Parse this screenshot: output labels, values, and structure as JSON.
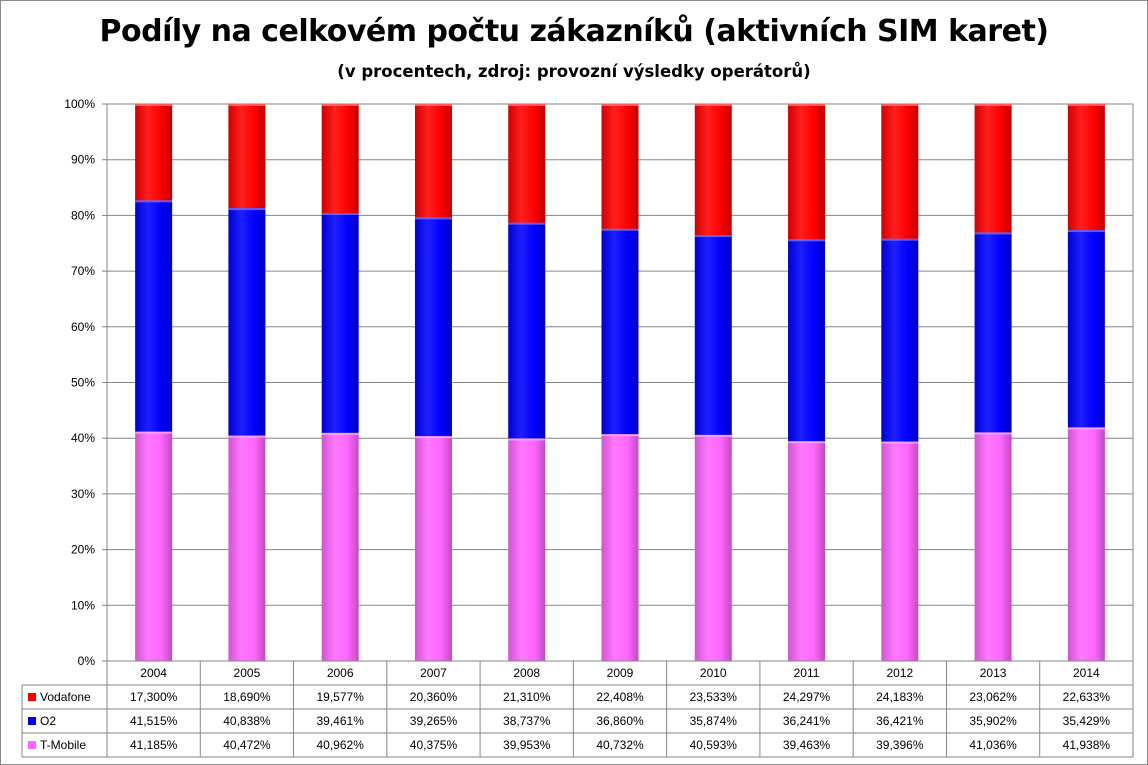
{
  "title": "Podíly na celkovém počtu zákazníků (aktivních SIM karet)",
  "subtitle": "(v procentech, zdroj: provozní výsledky operátorů)",
  "colors": {
    "Vodafone": "#ff0000",
    "O2": "#0000ff",
    "T-Mobile": "#ff66ff"
  },
  "chart_data": {
    "type": "bar",
    "stacked": true,
    "normalized_100_percent": true,
    "categories": [
      "2004",
      "2005",
      "2006",
      "2007",
      "2008",
      "2009",
      "2010",
      "2011",
      "2012",
      "2013",
      "2014"
    ],
    "y_ticks": [
      "0%",
      "10%",
      "20%",
      "30%",
      "40%",
      "50%",
      "60%",
      "70%",
      "80%",
      "90%",
      "100%"
    ],
    "ylim": [
      0,
      100
    ],
    "grid": true,
    "legend_placement": "data-table-left",
    "stack_order_bottom_to_top": [
      "T-Mobile",
      "O2",
      "Vodafone"
    ],
    "series": [
      {
        "name": "Vodafone",
        "values": [
          17.3,
          18.69,
          19.577,
          20.36,
          21.31,
          22.408,
          23.533,
          24.297,
          24.183,
          23.062,
          22.633
        ],
        "labels": [
          "17,300%",
          "18,690%",
          "19,577%",
          "20,360%",
          "21,310%",
          "22,408%",
          "23,533%",
          "24,297%",
          "24,183%",
          "23,062%",
          "22,633%"
        ]
      },
      {
        "name": "O2",
        "values": [
          41.515,
          40.838,
          39.461,
          39.265,
          38.737,
          36.86,
          35.874,
          36.241,
          36.421,
          35.902,
          35.429
        ],
        "labels": [
          "41,515%",
          "40,838%",
          "39,461%",
          "39,265%",
          "38,737%",
          "36,860%",
          "35,874%",
          "36,241%",
          "36,421%",
          "35,902%",
          "35,429%"
        ]
      },
      {
        "name": "T-Mobile",
        "values": [
          41.185,
          40.472,
          40.962,
          40.375,
          39.953,
          40.732,
          40.593,
          39.463,
          39.396,
          41.036,
          41.938
        ],
        "labels": [
          "41,185%",
          "40,472%",
          "40,962%",
          "40,375%",
          "39,953%",
          "40,732%",
          "40,593%",
          "39,463%",
          "39,396%",
          "41,036%",
          "41,938%"
        ]
      }
    ]
  }
}
